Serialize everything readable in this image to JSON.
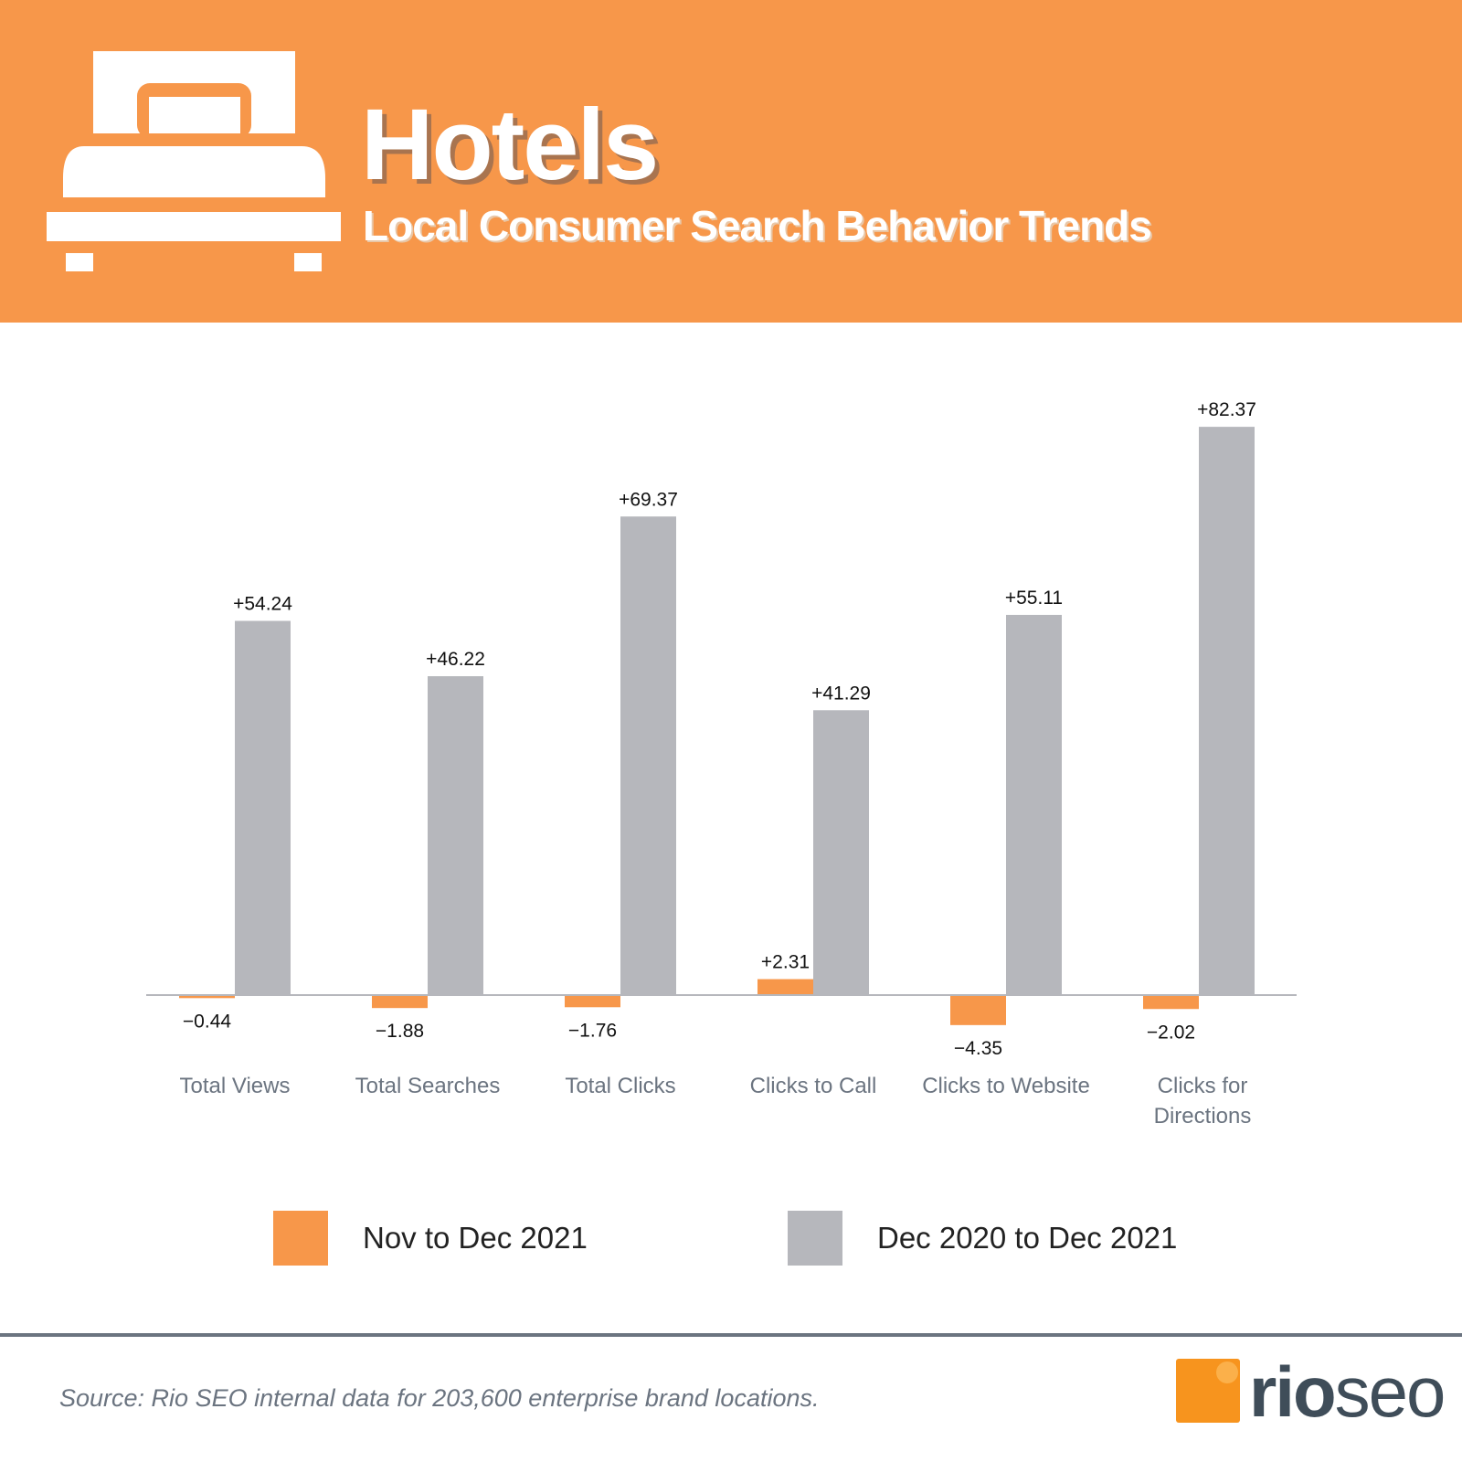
{
  "header": {
    "title": "Hotels",
    "subtitle": "Local Consumer Search Behavior Trends",
    "icon": "bed-icon"
  },
  "colors": {
    "header_bg": "#f7974a",
    "series1": "#f7974a",
    "series2": "#b6b7bc",
    "logo_orange": "#f7941e",
    "logo_text": "#3f4d59"
  },
  "chart_data": {
    "type": "bar",
    "categories": [
      "Total Views",
      "Total Searches",
      "Total Clicks",
      "Clicks to Call",
      "Clicks to Website",
      "Clicks for Directions"
    ],
    "series": [
      {
        "name": "Nov to Dec 2021",
        "values": [
          -0.44,
          -1.88,
          -1.76,
          2.31,
          -4.35,
          -2.02
        ]
      },
      {
        "name": "Dec 2020 to Dec 2021",
        "values": [
          54.24,
          46.22,
          69.37,
          41.29,
          55.11,
          82.37
        ]
      }
    ],
    "data_labels": [
      [
        "-0.44",
        "-1.88",
        "-1.76",
        "+2.31",
        "-4.35",
        "-2.02"
      ],
      [
        "+54.24",
        "+46.22",
        "+69.37",
        "+41.29",
        "+55.11",
        "+82.37"
      ]
    ],
    "legend_placement": "bottom",
    "grid": false
  },
  "legend": [
    "Nov to Dec 2021",
    "Dec 2020 to Dec 2021"
  ],
  "footer": {
    "source": "Source: Rio SEO internal data for 203,600 enterprise brand locations.",
    "logo_bold": "rio",
    "logo_light": "seo"
  }
}
